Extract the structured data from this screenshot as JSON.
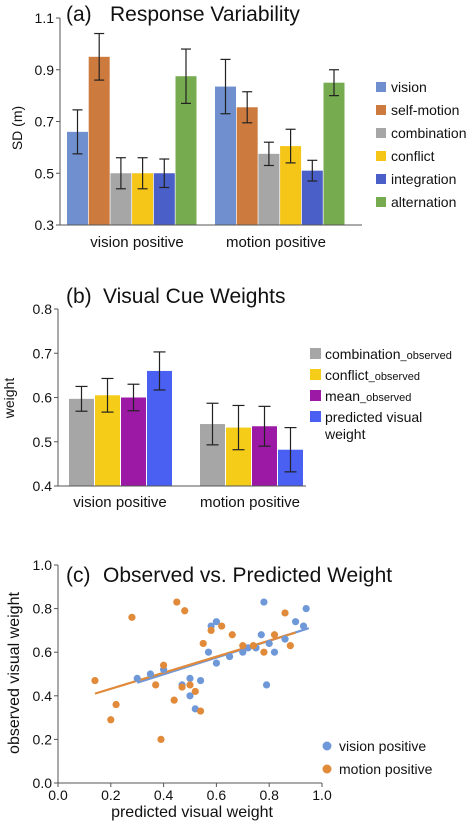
{
  "chart_data": [
    {
      "type": "bar",
      "panel_label": "(a)",
      "title": "Response Variability",
      "ylabel": "SD (m)",
      "ylim": [
        0.3,
        1.1
      ],
      "yticks": [
        "0.3",
        "0.5",
        "0.7",
        "0.9",
        "1.1"
      ],
      "categories": [
        "vision positive",
        "motion positive"
      ],
      "series": [
        {
          "name": "vision",
          "color": "#6f8fce",
          "values": [
            0.66,
            0.835
          ],
          "errors": [
            0.085,
            0.105
          ]
        },
        {
          "name": "self-motion",
          "color": "#cc7a3e",
          "values": [
            0.95,
            0.755
          ],
          "errors": [
            0.09,
            0.06
          ]
        },
        {
          "name": "combination",
          "color": "#a6a6a6",
          "values": [
            0.5,
            0.575
          ],
          "errors": [
            0.06,
            0.045
          ]
        },
        {
          "name": "conflict",
          "color": "#f5c518",
          "values": [
            0.5,
            0.605
          ],
          "errors": [
            0.06,
            0.065
          ]
        },
        {
          "name": "integration",
          "color": "#4a5fc7",
          "values": [
            0.5,
            0.51
          ],
          "errors": [
            0.055,
            0.04
          ]
        },
        {
          "name": "alternation",
          "color": "#76ab4f",
          "values": [
            0.875,
            0.85
          ],
          "errors": [
            0.105,
            0.05
          ]
        }
      ],
      "legend_position": "right"
    },
    {
      "type": "bar",
      "panel_label": "(b)",
      "title": "Visual Cue Weights",
      "ylabel": "weight",
      "ylim": [
        0.4,
        0.8
      ],
      "yticks": [
        "0.4",
        "0.5",
        "0.6",
        "0.7",
        "0.8"
      ],
      "categories": [
        "vision positive",
        "motion positive"
      ],
      "series": [
        {
          "name": "combination_observed",
          "legend_main": "combination",
          "legend_sub": "_observed",
          "color": "#a6a6a6",
          "values": [
            0.597,
            0.54
          ],
          "errors": [
            0.028,
            0.047
          ]
        },
        {
          "name": "conflict_observed",
          "legend_main": "conflict",
          "legend_sub": "_observed",
          "color": "#f5cc17",
          "values": [
            0.605,
            0.532
          ],
          "errors": [
            0.038,
            0.05
          ]
        },
        {
          "name": "mean_observed",
          "legend_main": "mean",
          "legend_sub": "_observed",
          "color": "#9b19a5",
          "values": [
            0.6,
            0.535
          ],
          "errors": [
            0.03,
            0.045
          ]
        },
        {
          "name": "predicted visual weight",
          "legend_main": "predicted visual",
          "legend_sub": "weight",
          "color": "#4a60f2",
          "values": [
            0.66,
            0.482
          ],
          "errors": [
            0.043,
            0.05
          ]
        }
      ],
      "legend_position": "right"
    },
    {
      "type": "scatter",
      "panel_label": "(c)",
      "title": "Observed vs. Predicted Weight",
      "xlabel": "predicted visual weight",
      "ylabel": "observed visual weight",
      "xlim": [
        0,
        1
      ],
      "ylim": [
        0,
        1
      ],
      "xticks": [
        "0.0",
        "0.2",
        "0.4",
        "0.6",
        "0.8",
        "1.0"
      ],
      "yticks": [
        "0.0",
        "0.2",
        "0.4",
        "0.6",
        "0.8",
        "1.0"
      ],
      "legend_position": "bottom-right",
      "series": [
        {
          "name": "vision positive",
          "color": "#6f98d8",
          "points": [
            [
              0.3,
              0.48
            ],
            [
              0.35,
              0.5
            ],
            [
              0.4,
              0.52
            ],
            [
              0.47,
              0.45
            ],
            [
              0.5,
              0.48
            ],
            [
              0.5,
              0.4
            ],
            [
              0.52,
              0.34
            ],
            [
              0.54,
              0.47
            ],
            [
              0.57,
              0.6
            ],
            [
              0.58,
              0.72
            ],
            [
              0.6,
              0.74
            ],
            [
              0.6,
              0.55
            ],
            [
              0.65,
              0.58
            ],
            [
              0.7,
              0.6
            ],
            [
              0.72,
              0.62
            ],
            [
              0.75,
              0.62
            ],
            [
              0.77,
              0.68
            ],
            [
              0.78,
              0.83
            ],
            [
              0.79,
              0.45
            ],
            [
              0.8,
              0.64
            ],
            [
              0.82,
              0.6
            ],
            [
              0.86,
              0.66
            ],
            [
              0.9,
              0.74
            ],
            [
              0.93,
              0.72
            ],
            [
              0.94,
              0.8
            ]
          ],
          "trendline": [
            [
              0.3,
              0.46
            ],
            [
              0.95,
              0.71
            ]
          ]
        },
        {
          "name": "motion positive",
          "color": "#e08a3a",
          "points": [
            [
              0.14,
              0.47
            ],
            [
              0.2,
              0.29
            ],
            [
              0.22,
              0.36
            ],
            [
              0.28,
              0.76
            ],
            [
              0.37,
              0.45
            ],
            [
              0.39,
              0.2
            ],
            [
              0.4,
              0.54
            ],
            [
              0.44,
              0.38
            ],
            [
              0.45,
              0.83
            ],
            [
              0.47,
              0.44
            ],
            [
              0.48,
              0.79
            ],
            [
              0.5,
              0.45
            ],
            [
              0.52,
              0.42
            ],
            [
              0.54,
              0.33
            ],
            [
              0.55,
              0.64
            ],
            [
              0.58,
              0.7
            ],
            [
              0.62,
              0.72
            ],
            [
              0.66,
              0.68
            ],
            [
              0.7,
              0.63
            ],
            [
              0.74,
              0.63
            ],
            [
              0.78,
              0.6
            ],
            [
              0.82,
              0.68
            ],
            [
              0.86,
              0.78
            ],
            [
              0.88,
              0.63
            ]
          ],
          "trendline": [
            [
              0.14,
              0.41
            ],
            [
              0.9,
              0.69
            ]
          ]
        }
      ]
    }
  ]
}
